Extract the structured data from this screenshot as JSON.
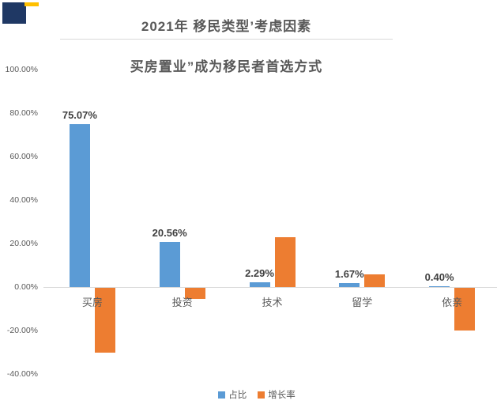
{
  "header": {
    "title": "2021年 移民类型’考虑因素",
    "subtitle": "买房置业”成为移民者首选方式"
  },
  "logo": {
    "name": "brand-logo",
    "navy_color": "#1F3864",
    "gold_color": "#FFC000"
  },
  "colors": {
    "title_text": "#595959",
    "axis_text": "#595959",
    "data_label_text": "#404040",
    "category_text": "#595959",
    "divider": "#D9D9D9",
    "axis_line": "#D9D9D9",
    "background": "#FFFFFF",
    "series_blue": "#5B9BD5",
    "series_orange": "#ED7D31"
  },
  "chart_data": {
    "type": "bar",
    "title": "2021年 移民类型’考虑因素",
    "subtitle": "买房置业”成为移民者首选方式",
    "categories": [
      "买房",
      "投资",
      "技术",
      "留学",
      "依亲"
    ],
    "series": [
      {
        "name": "占比",
        "color": "#5B9BD5",
        "values": [
          75.07,
          20.56,
          2.29,
          1.67,
          0.4
        ],
        "labels": [
          "75.07%",
          "20.56%",
          "2.29%",
          "1.67%",
          "0.40%"
        ],
        "labels_shown": true
      },
      {
        "name": "增长率",
        "color": "#ED7D31",
        "values": [
          -29.8,
          -5.1,
          22.9,
          5.9,
          -19.6
        ],
        "labels_shown": false,
        "values_estimated_from_gridlines": true
      }
    ],
    "xlabel": "",
    "ylabel": "",
    "ylim": [
      -40,
      100
    ],
    "yticks": [
      "100.00%",
      "80.00%",
      "60.00%",
      "40.00%",
      "20.00%",
      "0.00%",
      "-20.00%",
      "-40.00%"
    ],
    "ytick_values": [
      100,
      80,
      60,
      40,
      20,
      0,
      -20,
      -40
    ],
    "grid": false,
    "legend_position": "bottom"
  }
}
